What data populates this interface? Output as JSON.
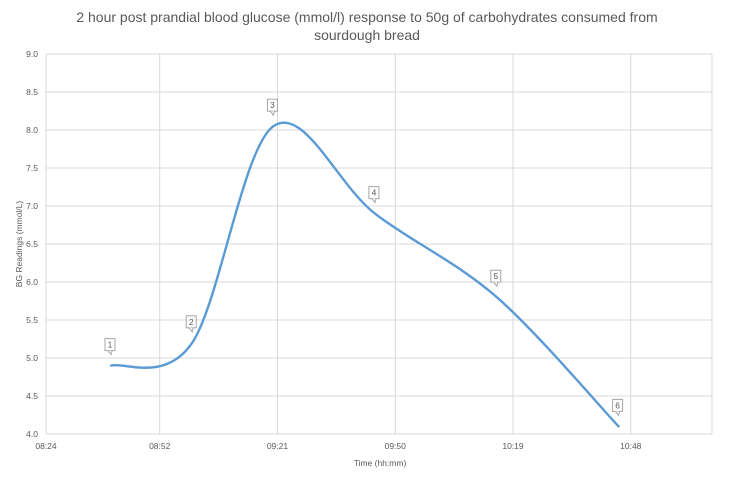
{
  "chart_data": {
    "type": "line",
    "title_lines": [
      "2 hour post prandial blood glucose (mmol/l) response to 50g of carbohydrates consumed from",
      "sourdough bread"
    ],
    "xlabel": "Time (hh:mm)",
    "ylabel": "BG Readings (mmol/L)",
    "x_ticks": [
      "08:24",
      "08:52",
      "09:21",
      "09:50",
      "10:19",
      "10:48"
    ],
    "x_tick_minutes": [
      504,
      532,
      561,
      590,
      619,
      648
    ],
    "xlim_minutes": [
      504,
      668
    ],
    "ylim": [
      4.0,
      9.0
    ],
    "y_ticks": [
      "4.0",
      "4.5",
      "5.0",
      "5.5",
      "6.0",
      "6.5",
      "7.0",
      "7.5",
      "8.0",
      "8.5",
      "9.0"
    ],
    "grid": true,
    "smooth": true,
    "series": [
      {
        "color": "#5b9bd5",
        "points": [
          {
            "x": "08:40",
            "y": 4.9,
            "label": "1"
          },
          {
            "x": "09:00",
            "y": 5.2,
            "label": "2"
          },
          {
            "x": "09:20",
            "y": 8.05,
            "label": "3"
          },
          {
            "x": "09:45",
            "y": 6.9,
            "label": "4"
          },
          {
            "x": "10:15",
            "y": 5.8,
            "label": "5"
          },
          {
            "x": "10:45",
            "y": 4.1,
            "label": "6"
          }
        ]
      }
    ]
  }
}
